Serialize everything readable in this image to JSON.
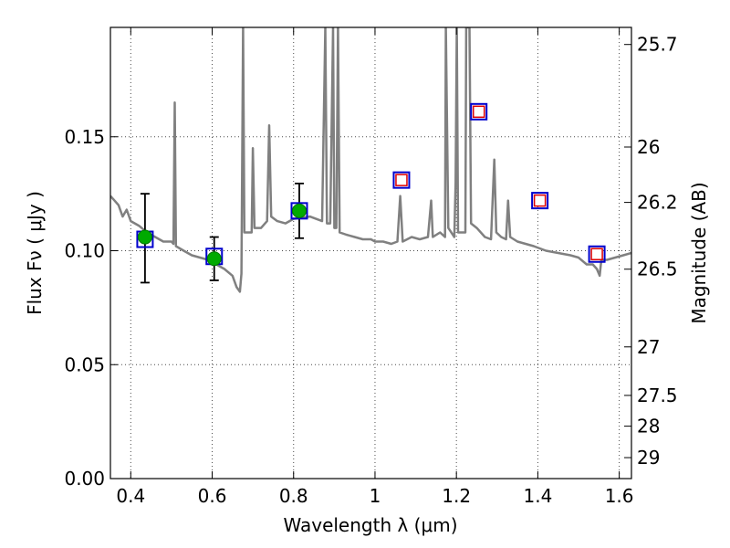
{
  "chart_data": {
    "type": "scatter",
    "xlabel": "Wavelength  λ (μm)",
    "ylabel": "Flux  Fν  ( μJy )",
    "ylabel_right": "Magnitude (AB)",
    "xlim": [
      0.35,
      1.63
    ],
    "ylim": [
      0.0,
      0.198
    ],
    "grid": true,
    "x_ticks": [
      0.4,
      0.6,
      0.8,
      1.0,
      1.2,
      1.4,
      1.6
    ],
    "x_tick_labels": [
      "0.4",
      "0.6",
      "0.8",
      "1",
      "1.2",
      "1.4",
      "1.6"
    ],
    "y_ticks": [
      0.0,
      0.05,
      0.1,
      0.15
    ],
    "y_tick_labels": [
      "0.00",
      "0.05",
      "0.10",
      "0.15"
    ],
    "right_ticks": [
      {
        "flux": 0.1905,
        "label": "25.7"
      },
      {
        "flux": 0.1455,
        "label": "26"
      },
      {
        "flux": 0.1212,
        "label": "26.2"
      },
      {
        "flux": 0.0919,
        "label": "26.5"
      },
      {
        "flux": 0.0578,
        "label": "27"
      },
      {
        "flux": 0.0365,
        "label": "27.5"
      },
      {
        "flux": 0.023,
        "label": "28"
      },
      {
        "flux": 0.0092,
        "label": "29"
      }
    ],
    "series": [
      {
        "marker": "filled-circle",
        "color": "#00aa00",
        "points": [
          {
            "x": 0.435,
            "y": 0.106,
            "yerr_low": 0.086,
            "yerr_high": 0.125
          },
          {
            "x": 0.605,
            "y": 0.0965,
            "yerr_low": 0.087,
            "yerr_high": 0.106
          },
          {
            "x": 0.814,
            "y": 0.1175,
            "yerr_low": 0.1055,
            "yerr_high": 0.1295
          }
        ]
      },
      {
        "marker": "open-square",
        "color": "#0000cc",
        "points": [
          {
            "x": 0.435,
            "y": 0.105
          },
          {
            "x": 0.605,
            "y": 0.0975
          },
          {
            "x": 0.814,
            "y": 0.1175
          },
          {
            "x": 1.065,
            "y": 0.131
          },
          {
            "x": 1.255,
            "y": 0.161
          },
          {
            "x": 1.405,
            "y": 0.122
          },
          {
            "x": 1.545,
            "y": 0.0985
          }
        ]
      },
      {
        "marker": "open-square-small",
        "color": "#dd0000",
        "points": [
          {
            "x": 1.065,
            "y": 0.131
          },
          {
            "x": 1.255,
            "y": 0.161
          },
          {
            "x": 1.405,
            "y": 0.122
          },
          {
            "x": 1.545,
            "y": 0.0985
          }
        ]
      }
    ],
    "spectrum": {
      "color": "#808080",
      "points": [
        [
          0.35,
          0.124
        ],
        [
          0.36,
          0.122
        ],
        [
          0.37,
          0.12
        ],
        [
          0.38,
          0.115
        ],
        [
          0.39,
          0.118
        ],
        [
          0.4,
          0.113
        ],
        [
          0.42,
          0.111
        ],
        [
          0.44,
          0.108
        ],
        [
          0.46,
          0.106
        ],
        [
          0.48,
          0.104
        ],
        [
          0.5,
          0.104
        ],
        [
          0.505,
          0.103
        ],
        [
          0.508,
          0.165
        ],
        [
          0.511,
          0.102
        ],
        [
          0.53,
          0.1
        ],
        [
          0.55,
          0.098
        ],
        [
          0.57,
          0.097
        ],
        [
          0.59,
          0.096
        ],
        [
          0.61,
          0.094
        ],
        [
          0.63,
          0.092
        ],
        [
          0.65,
          0.089
        ],
        [
          0.66,
          0.084
        ],
        [
          0.668,
          0.082
        ],
        [
          0.672,
          0.09
        ],
        [
          0.676,
          0.198
        ],
        [
          0.679,
          0.108
        ],
        [
          0.69,
          0.108
        ],
        [
          0.697,
          0.108
        ],
        [
          0.7,
          0.145
        ],
        [
          0.704,
          0.11
        ],
        [
          0.72,
          0.11
        ],
        [
          0.735,
          0.113
        ],
        [
          0.74,
          0.155
        ],
        [
          0.745,
          0.115
        ],
        [
          0.76,
          0.113
        ],
        [
          0.78,
          0.112
        ],
        [
          0.8,
          0.114
        ],
        [
          0.84,
          0.115
        ],
        [
          0.87,
          0.113
        ],
        [
          0.878,
          0.198
        ],
        [
          0.882,
          0.112
        ],
        [
          0.89,
          0.112
        ],
        [
          0.897,
          0.198
        ],
        [
          0.9,
          0.11
        ],
        [
          0.905,
          0.11
        ],
        [
          0.909,
          0.198
        ],
        [
          0.913,
          0.108
        ],
        [
          0.93,
          0.107
        ],
        [
          0.95,
          0.106
        ],
        [
          0.97,
          0.105
        ],
        [
          0.99,
          0.105
        ],
        [
          1.0,
          0.104
        ],
        [
          1.02,
          0.104
        ],
        [
          1.04,
          0.103
        ],
        [
          1.055,
          0.104
        ],
        [
          1.062,
          0.124
        ],
        [
          1.068,
          0.104
        ],
        [
          1.09,
          0.106
        ],
        [
          1.11,
          0.105
        ],
        [
          1.13,
          0.106
        ],
        [
          1.138,
          0.122
        ],
        [
          1.142,
          0.106
        ],
        [
          1.16,
          0.108
        ],
        [
          1.172,
          0.106
        ],
        [
          1.174,
          0.198
        ],
        [
          1.18,
          0.11
        ],
        [
          1.195,
          0.106
        ],
        [
          1.198,
          0.13
        ],
        [
          1.201,
          0.198
        ],
        [
          1.204,
          0.108
        ],
        [
          1.215,
          0.108
        ],
        [
          1.222,
          0.108
        ],
        [
          1.224,
          0.198
        ],
        [
          1.232,
          0.198
        ],
        [
          1.236,
          0.112
        ],
        [
          1.25,
          0.11
        ],
        [
          1.27,
          0.106
        ],
        [
          1.285,
          0.105
        ],
        [
          1.293,
          0.14
        ],
        [
          1.298,
          0.108
        ],
        [
          1.31,
          0.106
        ],
        [
          1.322,
          0.105
        ],
        [
          1.327,
          0.122
        ],
        [
          1.332,
          0.106
        ],
        [
          1.35,
          0.104
        ],
        [
          1.37,
          0.103
        ],
        [
          1.39,
          0.102
        ],
        [
          1.42,
          0.1
        ],
        [
          1.45,
          0.099
        ],
        [
          1.48,
          0.098
        ],
        [
          1.5,
          0.097
        ],
        [
          1.52,
          0.094
        ],
        [
          1.535,
          0.094
        ],
        [
          1.545,
          0.092
        ],
        [
          1.552,
          0.089
        ],
        [
          1.556,
          0.096
        ],
        [
          1.57,
          0.096
        ],
        [
          1.59,
          0.097
        ],
        [
          1.61,
          0.098
        ],
        [
          1.63,
          0.099
        ]
      ]
    }
  }
}
